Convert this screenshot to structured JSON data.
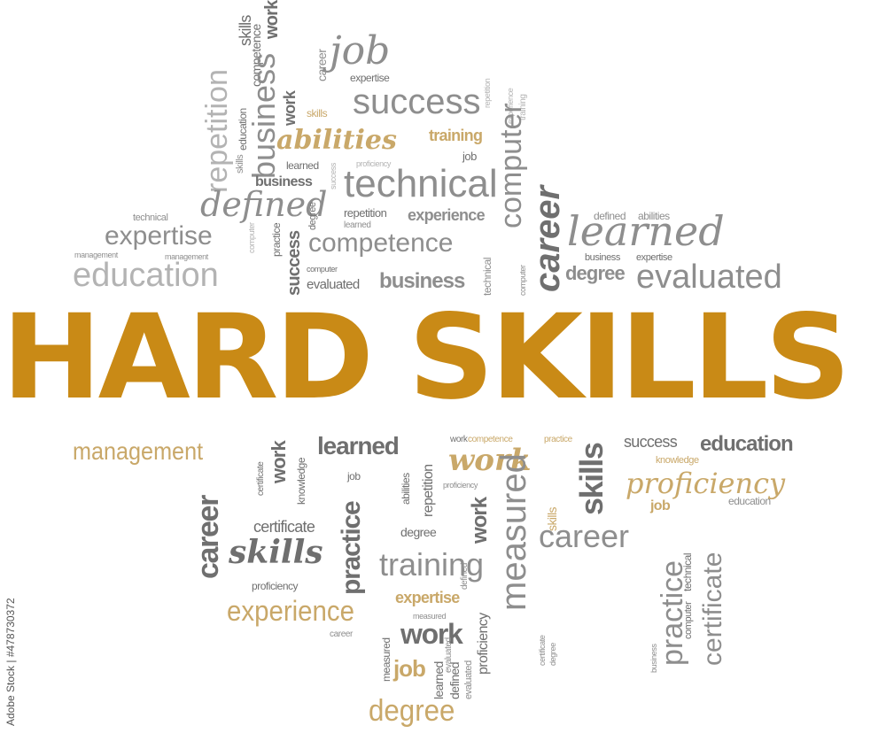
{
  "title": "HARD SKILLS",
  "watermark": "Adobe Stock | #478730372",
  "colors": {
    "accent": "#c98a16",
    "gold": "#c9a869",
    "gray_dark": "#6f6f6f",
    "gray_mid": "#8e8e8e",
    "gray_light": "#b3b3b3"
  },
  "words": {
    "skills_top": "skills",
    "competence_top": "competence",
    "work_top": "work",
    "repetition_top": "repetition",
    "education_small_top": "education",
    "business_top": "business",
    "career_top": "career",
    "job_top": "job",
    "expertise_top": "expertise",
    "success_top": "success",
    "work_mid_top": "work",
    "skills_gold_top": "skills",
    "repetition_tiny": "repetition",
    "experience_tiny": "experience",
    "training_tiny": "training",
    "abilities_top": "abilities",
    "training_gold": "training",
    "computer_top": "computer",
    "skills_small2": "skills",
    "learned_small": "learned",
    "success_tiny": "success",
    "proficiency_tiny": "proficiency",
    "job_small": "job",
    "business_mid": "business",
    "technical_big": "technical",
    "defined_big": "defined",
    "career_bold": "career",
    "technical_small": "technical",
    "expertise_big": "expertise",
    "computer_tiny": "computer",
    "practice_tiny": "practice",
    "degree_tiny": "degree",
    "repetition_mid": "repetition",
    "learned_tiny": "learned",
    "experience_mid": "experience",
    "competence_big": "competence",
    "defined_small": "defined",
    "abilities_small": "abilities",
    "learned_big": "learned",
    "management_small": "management",
    "management_small2": "management",
    "education_big": "education",
    "success_vert": "success",
    "computer_small": "computer",
    "evaluated_mid": "evaluated",
    "business_bold": "business",
    "technical_vert": "technical",
    "computer_tiny2": "computer",
    "business_small": "business",
    "expertise_small": "expertise",
    "degree_mid": "degree",
    "evaluated_big": "evaluated",
    "management_gold": "management",
    "certificate_tiny": "certificate",
    "work_bottom1": "work",
    "knowledge_small": "knowledge",
    "learned_bottom": "learned",
    "job_bottom_small": "job",
    "work_bottom_small": "work",
    "competence_gold_small": "competence",
    "practice_gold_small": "practice",
    "skills_bottom_big": "skills",
    "success_bottom": "success",
    "education_bottom": "education",
    "knowledge_gold": "knowledge",
    "work_gold_bold": "work",
    "proficiency_gold": "proficiency",
    "proficiency_tiny2": "proficiency",
    "repetition_bottom": "repetition",
    "abilities_bottom": "abilities",
    "skills_gold_vert": "skills",
    "career_bottom_vert": "career",
    "certificate_mid": "certificate",
    "skills_bold_italic": "skills",
    "practice_vert": "practice",
    "degree_bottom_small": "degree",
    "training_big": "training",
    "work_vert": "work",
    "measured_big": "measured",
    "career_big": "career",
    "job_gold": "job",
    "education_tiny": "education",
    "proficiency_small": "proficiency",
    "experience_gold": "experience",
    "expertise_gold": "expertise",
    "measured_tiny": "measured",
    "career_tiny": "career",
    "work_bottom_bold": "work",
    "proficiency_vert": "proficiency",
    "measured_vert2": "measured",
    "job_gold_bottom": "job",
    "learned_vert": "learned",
    "defined_vert": "defined",
    "evaluated_vert": "evaluated",
    "degree_gold": "degree",
    "certificate_vert": "certificate",
    "practice_big_vert": "practice",
    "computer_vert": "computer",
    "technical_vert2": "technical",
    "business_tiny": "business",
    "certificate_tiny2": "certificate",
    "degree_tiny2": "degree",
    "defined_tiny": "defined",
    "evaluated_tiny": "evaluated"
  }
}
